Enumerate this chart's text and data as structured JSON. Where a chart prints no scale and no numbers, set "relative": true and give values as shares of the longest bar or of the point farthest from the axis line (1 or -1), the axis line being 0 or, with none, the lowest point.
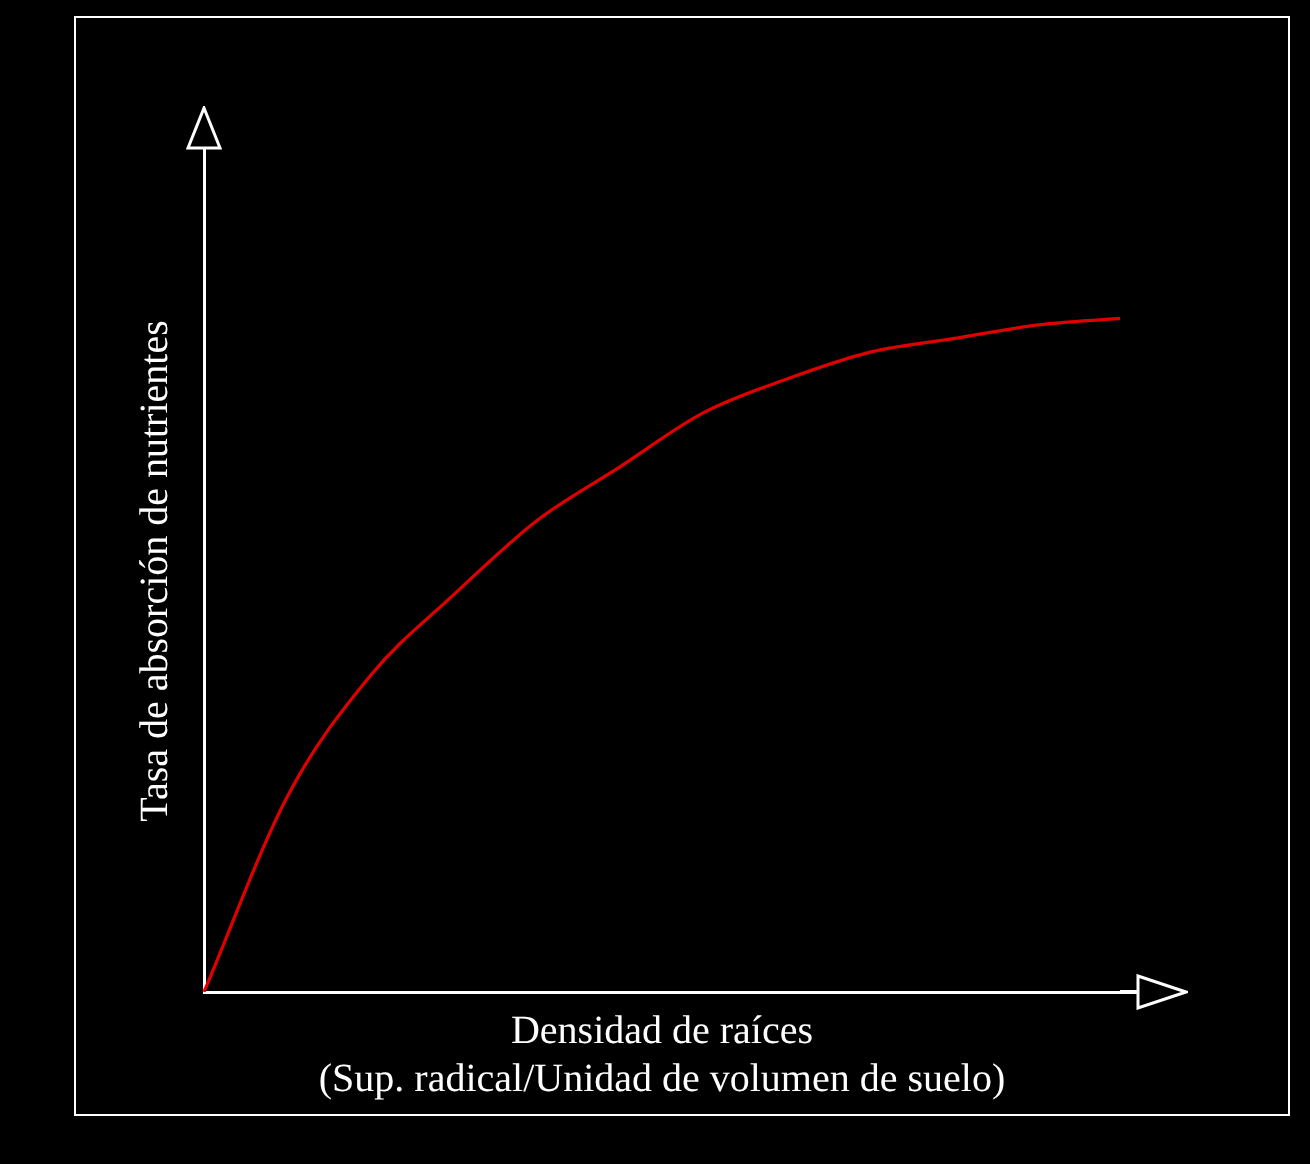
{
  "chart_data": {
    "type": "line",
    "relative": true,
    "xlabel": "Densidad de raíces\n(Sup. radical/Unidad de volumen de suelo)",
    "ylabel": "Tasa de absorción de nutrientes",
    "categories": [
      null,
      null,
      null,
      null,
      null,
      null,
      null,
      null,
      null,
      null,
      null,
      null
    ],
    "series": [
      {
        "color": "#e00000",
        "values": [
          0,
          0.29,
          0.47,
          0.59,
          0.7,
          0.78,
          0.86,
          0.91,
          0.95,
          0.97,
          0.99,
          1.0
        ]
      }
    ],
    "marker": "none",
    "line_style": "solid",
    "grid": false,
    "legend": false
  }
}
